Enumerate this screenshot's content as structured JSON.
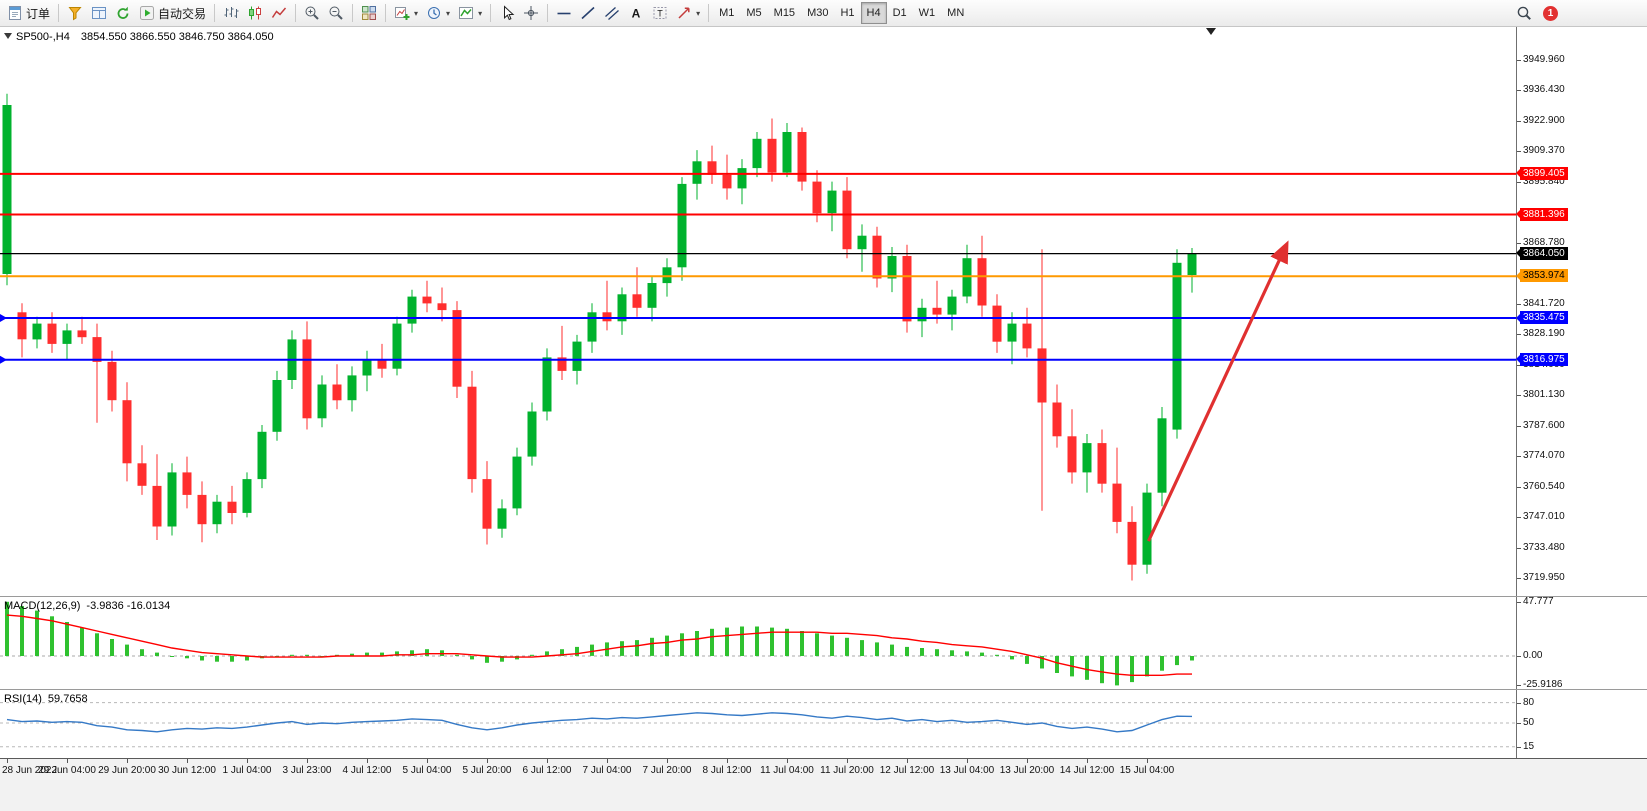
{
  "toolbar": {
    "groups": [
      {
        "items": [
          {
            "name": "new-order-button",
            "icon": "new-order",
            "label": "订单"
          }
        ]
      },
      {
        "items": [
          {
            "name": "depth-of-market-button",
            "icon": "depth-of-market"
          },
          {
            "name": "market-watch-button",
            "icon": "market-watch"
          },
          {
            "name": "refresh-button",
            "icon": "refresh"
          },
          {
            "name": "algo-trading-button",
            "icon": "algo-play",
            "label": "自动交易"
          }
        ]
      },
      {
        "items": [
          {
            "name": "bar-chart-button",
            "icon": "bar-chart"
          },
          {
            "name": "candlestick-chart-button",
            "icon": "candle-chart"
          },
          {
            "name": "line-chart-button",
            "icon": "line-chart"
          }
        ]
      },
      {
        "items": [
          {
            "name": "zoom-in-button",
            "icon": "zoom-in"
          },
          {
            "name": "zoom-out-button",
            "icon": "zoom-out"
          }
        ]
      },
      {
        "items": [
          {
            "name": "tile-windows-button",
            "icon": "tile-windows"
          }
        ]
      },
      {
        "items": [
          {
            "name": "new-chart-button",
            "icon": "new-chart",
            "caret": true
          },
          {
            "name": "periods-button",
            "icon": "periods",
            "caret": true
          },
          {
            "name": "indicators-button",
            "icon": "indicators",
            "caret": true
          }
        ]
      },
      {
        "items": [
          {
            "name": "cursor-button",
            "icon": "cursor"
          },
          {
            "name": "crosshair-button",
            "icon": "crosshair"
          }
        ]
      },
      {
        "items": [
          {
            "name": "horizontal-line-button",
            "icon": "hline"
          },
          {
            "name": "trendline-button",
            "icon": "trendline"
          },
          {
            "name": "equidistant-channel-button",
            "icon": "channel"
          },
          {
            "name": "text-button",
            "icon": "text-a"
          },
          {
            "name": "text-label-button",
            "icon": "label-t"
          },
          {
            "name": "arrows-button",
            "icon": "shapes",
            "caret": true
          }
        ]
      }
    ],
    "timeframes": [
      "M1",
      "M5",
      "M15",
      "M30",
      "H1",
      "H4",
      "D1",
      "W1",
      "MN"
    ],
    "active_timeframe": "H4",
    "right": {
      "search_name": "search-button",
      "notification_count": "1"
    }
  },
  "chart": {
    "symbol_period": "SP500-,H4",
    "ohlc_line": "3854.550 3866.550 3846.750 3864.050"
  },
  "indicators": {
    "macd_title": "MACD(12,26,9)",
    "macd_values": "-3.9836 -16.0134",
    "rsi_title": "RSI(14)",
    "rsi_value": "59.7658"
  },
  "chart_data": [
    {
      "type": "candlestick",
      "symbol": "SP500-",
      "period": "H4",
      "current_ohlc": {
        "open": 3854.55,
        "high": 3866.55,
        "low": 3846.75,
        "close": 3864.05
      },
      "ylim": [
        3711.7,
        3964.6
      ],
      "yticks": [
        "3949.960",
        "3936.430",
        "3922.900",
        "3909.370",
        "3895.840",
        "3882.310",
        "3868.780",
        "3855.250",
        "3841.720",
        "3828.190",
        "3814.660",
        "3801.130",
        "3787.600",
        "3774.070",
        "3760.540",
        "3747.010",
        "3733.480",
        "3719.950"
      ],
      "x_labels": [
        "28 Jun 2022",
        "29 Jun 04:00",
        "29 Jun 20:00",
        "30 Jun 12:00",
        "1 Jul 04:00",
        "3 Jul 23:00",
        "4 Jul 12:00",
        "5 Jul 04:00",
        "5 Jul 20:00",
        "6 Jul 12:00",
        "7 Jul 04:00",
        "7 Jul 20:00",
        "8 Jul 12:00",
        "11 Jul 04:00",
        "11 Jul 20:00",
        "12 Jul 12:00",
        "13 Jul 04:00",
        "13 Jul 20:00",
        "14 Jul 12:00",
        "15 Jul 04:00"
      ],
      "label_every": 4,
      "up_color": "#00b22d",
      "down_color": "#ff2e2e",
      "ohlc": [
        [
          3855,
          3935,
          3850,
          3930
        ],
        [
          3838,
          3842,
          3818,
          3826
        ],
        [
          3826,
          3836,
          3822,
          3833
        ],
        [
          3833,
          3838,
          3820,
          3824
        ],
        [
          3824,
          3833,
          3817,
          3830
        ],
        [
          3830,
          3836,
          3824,
          3827
        ],
        [
          3827,
          3833,
          3789,
          3816
        ],
        [
          3816,
          3821,
          3794,
          3799
        ],
        [
          3799,
          3807,
          3763,
          3771
        ],
        [
          3771,
          3779,
          3757,
          3761
        ],
        [
          3761,
          3775,
          3737,
          3743
        ],
        [
          3743,
          3771,
          3739,
          3767
        ],
        [
          3767,
          3774,
          3751,
          3757
        ],
        [
          3757,
          3763,
          3736,
          3744
        ],
        [
          3744,
          3757,
          3740,
          3754
        ],
        [
          3754,
          3761,
          3744,
          3749
        ],
        [
          3749,
          3767,
          3747,
          3764
        ],
        [
          3764,
          3788,
          3760,
          3785
        ],
        [
          3785,
          3812,
          3781,
          3808
        ],
        [
          3808,
          3830,
          3804,
          3826
        ],
        [
          3826,
          3834,
          3786,
          3791
        ],
        [
          3791,
          3810,
          3787,
          3806
        ],
        [
          3806,
          3815,
          3795,
          3799
        ],
        [
          3799,
          3814,
          3794,
          3810
        ],
        [
          3810,
          3821,
          3803,
          3817
        ],
        [
          3817,
          3824,
          3809,
          3813
        ],
        [
          3813,
          3836,
          3810,
          3833
        ],
        [
          3833,
          3848,
          3829,
          3845
        ],
        [
          3845,
          3852,
          3838,
          3842
        ],
        [
          3842,
          3849,
          3834,
          3839
        ],
        [
          3839,
          3843,
          3800,
          3805
        ],
        [
          3805,
          3812,
          3758,
          3764
        ],
        [
          3764,
          3772,
          3735,
          3742
        ],
        [
          3742,
          3755,
          3738,
          3751
        ],
        [
          3751,
          3778,
          3748,
          3774
        ],
        [
          3774,
          3798,
          3770,
          3794
        ],
        [
          3794,
          3822,
          3790,
          3818
        ],
        [
          3818,
          3832,
          3808,
          3812
        ],
        [
          3812,
          3828,
          3806,
          3825
        ],
        [
          3825,
          3842,
          3820,
          3838
        ],
        [
          3838,
          3852,
          3830,
          3834
        ],
        [
          3834,
          3849,
          3828,
          3846
        ],
        [
          3846,
          3858,
          3836,
          3840
        ],
        [
          3840,
          3854,
          3834,
          3851
        ],
        [
          3851,
          3862,
          3845,
          3858
        ],
        [
          3858,
          3898,
          3852,
          3895
        ],
        [
          3895,
          3910,
          3888,
          3905
        ],
        [
          3905,
          3912,
          3895,
          3899
        ],
        [
          3899,
          3908,
          3888,
          3893
        ],
        [
          3893,
          3906,
          3886,
          3902
        ],
        [
          3902,
          3918,
          3898,
          3915
        ],
        [
          3915,
          3924,
          3896,
          3900
        ],
        [
          3900,
          3922,
          3898,
          3918
        ],
        [
          3918,
          3920,
          3892,
          3896
        ],
        [
          3896,
          3901,
          3878,
          3882
        ],
        [
          3882,
          3896,
          3874,
          3892
        ],
        [
          3892,
          3898,
          3862,
          3866
        ],
        [
          3866,
          3877,
          3856,
          3872
        ],
        [
          3872,
          3876,
          3849,
          3853
        ],
        [
          3853,
          3867,
          3847,
          3863
        ],
        [
          3863,
          3868,
          3829,
          3834
        ],
        [
          3834,
          3844,
          3827,
          3840
        ],
        [
          3840,
          3852,
          3833,
          3837
        ],
        [
          3837,
          3848,
          3830,
          3845
        ],
        [
          3845,
          3868,
          3842,
          3862
        ],
        [
          3862,
          3872,
          3836,
          3841
        ],
        [
          3841,
          3846,
          3820,
          3825
        ],
        [
          3825,
          3838,
          3815,
          3833
        ],
        [
          3833,
          3840,
          3818,
          3822
        ],
        [
          3822,
          3866,
          3750,
          3798
        ],
        [
          3798,
          3806,
          3778,
          3783
        ],
        [
          3783,
          3795,
          3762,
          3767
        ],
        [
          3767,
          3784,
          3758,
          3780
        ],
        [
          3780,
          3786,
          3758,
          3762
        ],
        [
          3762,
          3778,
          3740,
          3745
        ],
        [
          3745,
          3752,
          3719,
          3726
        ],
        [
          3726,
          3762,
          3722,
          3758
        ],
        [
          3758,
          3796,
          3752,
          3791
        ],
        [
          3786,
          3866,
          3782,
          3860
        ],
        [
          3854.55,
          3866.55,
          3846.75,
          3864.05
        ]
      ],
      "hlines": [
        {
          "value": 3899.405,
          "label": "3899.405",
          "color": "#ff0000",
          "text_color": "#ffffff",
          "width": 2
        },
        {
          "value": 3881.396,
          "label": "3881.396",
          "color": "#ff0000",
          "text_color": "#ffffff",
          "width": 2
        },
        {
          "value": 3864.05,
          "label": "3864.050",
          "color": "#000000",
          "text_color": "#ffffff",
          "width": 1.2,
          "tag_name": "bid-price-tag"
        },
        {
          "value": 3853.974,
          "label": "3853.974",
          "color": "#ff9900",
          "text_color": "#000000",
          "width": 2
        },
        {
          "value": 3835.475,
          "label": "3835.475",
          "color": "#0000ff",
          "text_color": "#ffffff",
          "width": 2,
          "left_marker": true
        },
        {
          "value": 3816.975,
          "label": "3816.975",
          "color": "#0000ff",
          "text_color": "#ffffff",
          "width": 2,
          "left_marker": true
        }
      ],
      "arrow": {
        "from_bar": 76.1,
        "from_price": 3736.5,
        "to_bar": 85.3,
        "to_price": 3868,
        "color": "#e03030"
      }
    },
    {
      "type": "bar",
      "name": "MACD",
      "params": "12,26,9",
      "current_values": "-3.9836 -16.0134",
      "ylim": [
        -30,
        52
      ],
      "yticks": [
        {
          "v": 47.777,
          "label": "47.777"
        },
        {
          "v": 0,
          "label": "0.00"
        },
        {
          "v": -25.9186,
          "label": "-25.9186"
        }
      ],
      "bar_color": "#2fc12f",
      "signal_color": "#ff0000",
      "values": [
        47.8,
        44,
        40,
        35,
        30,
        25,
        20,
        15,
        10,
        6,
        3,
        0,
        -2,
        -4,
        -5,
        -5,
        -4,
        -2,
        -1,
        1,
        1,
        0,
        1,
        2,
        3,
        3,
        4,
        5,
        6,
        5,
        1,
        -3,
        -6,
        -5,
        -3,
        1,
        4,
        6,
        8,
        10,
        12,
        13,
        14,
        16,
        18,
        20,
        22,
        24,
        25,
        26,
        26,
        25,
        24,
        22,
        20,
        18,
        16,
        14,
        12,
        10,
        8,
        7,
        6,
        5,
        4,
        3,
        1,
        -3,
        -7,
        -11,
        -15,
        -18,
        -21,
        -24,
        -25.9,
        -23,
        -18,
        -13,
        -8,
        -4
      ],
      "signal": [
        36,
        35,
        33,
        31,
        28,
        25,
        22,
        19,
        16,
        13,
        10,
        7,
        5,
        3,
        2,
        1,
        0,
        -1,
        -1,
        -1,
        -1,
        -1,
        0,
        0,
        0,
        0,
        1,
        1,
        2,
        2,
        2,
        1,
        0,
        -1,
        -1,
        -1,
        0,
        1,
        2,
        4,
        6,
        8,
        9,
        11,
        12,
        14,
        15,
        17,
        18,
        19,
        20,
        21,
        21,
        21,
        21,
        20,
        20,
        19,
        18,
        16,
        15,
        13,
        12,
        10,
        9,
        8,
        6,
        4,
        1,
        -2,
        -6,
        -9,
        -12,
        -14,
        -16,
        -17,
        -17,
        -17,
        -16,
        -16
      ]
    },
    {
      "type": "line",
      "name": "RSI",
      "params": "14",
      "current_value": "59.7658",
      "ylim": [
        0,
        100
      ],
      "levels": [
        {
          "v": 80,
          "label": "80"
        },
        {
          "v": 50,
          "label": "50"
        },
        {
          "v": 15,
          "label": "15"
        }
      ],
      "line_color": "#3579c6",
      "values": [
        55,
        52,
        53,
        51,
        52,
        51,
        46,
        44,
        40,
        39,
        37,
        40,
        42,
        41,
        43,
        42,
        44,
        47,
        50,
        52,
        48,
        50,
        49,
        51,
        52,
        53,
        54,
        56,
        55,
        54,
        48,
        43,
        40,
        43,
        47,
        50,
        52,
        54,
        55,
        57,
        56,
        58,
        57,
        59,
        61,
        63,
        65,
        64,
        62,
        61,
        63,
        65,
        64,
        62,
        59,
        57,
        60,
        58,
        55,
        57,
        53,
        55,
        52,
        54,
        51,
        52,
        54,
        51,
        48,
        50,
        45,
        42,
        44,
        41,
        37,
        39,
        47,
        55,
        60,
        59.77
      ]
    }
  ]
}
